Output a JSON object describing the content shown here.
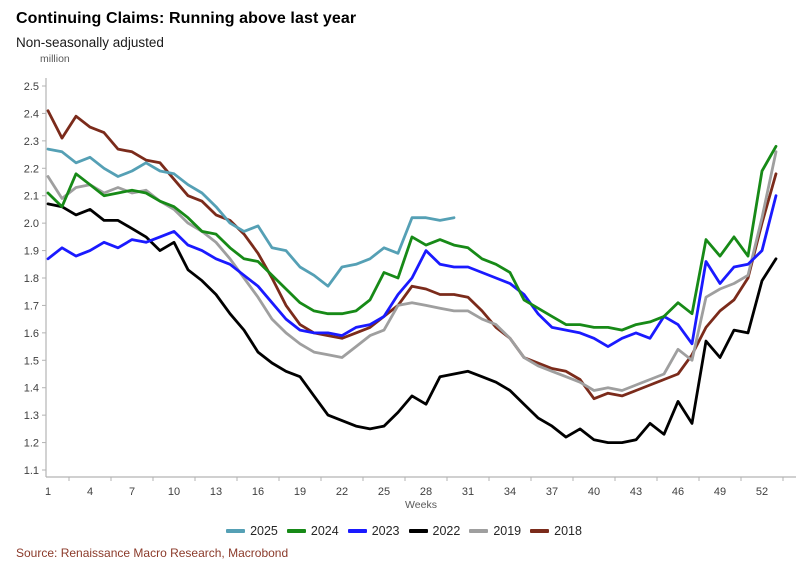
{
  "header": {
    "title": "Continuing Claims: Running above last year",
    "subtitle": "Non-seasonally adjusted"
  },
  "source": {
    "label": "Source: Renaissance Macro Research, Macrobond"
  },
  "chart_data": {
    "type": "line",
    "title": "Continuing Claims: Running above last year",
    "subtitle": "Non-seasonally adjusted",
    "unit_label": "million",
    "xlabel": "Weeks",
    "ylim": [
      1.1,
      2.5
    ],
    "ytick_step": 0.1,
    "x_ticks": [
      1,
      4,
      7,
      10,
      13,
      16,
      19,
      22,
      25,
      28,
      31,
      34,
      37,
      40,
      43,
      46,
      49,
      52
    ],
    "x_start": 1,
    "x_max": 53,
    "grid": false,
    "legend_position": "bottom",
    "axis_color": "#b3b3b3",
    "tick_label_color": "#404040",
    "axis_title_color": "#595959",
    "series": [
      {
        "name": "2025",
        "color": "#55a0b5",
        "values": [
          2.27,
          2.26,
          2.22,
          2.24,
          2.2,
          2.17,
          2.19,
          2.22,
          2.19,
          2.18,
          2.14,
          2.11,
          2.06,
          2.0,
          1.97,
          1.99,
          1.91,
          1.9,
          1.84,
          1.81,
          1.77,
          1.84,
          1.85,
          1.87,
          1.91,
          1.89,
          2.02,
          2.02,
          2.01,
          2.02
        ]
      },
      {
        "name": "2024",
        "color": "#178a17",
        "values": [
          2.11,
          2.06,
          2.18,
          2.14,
          2.1,
          2.11,
          2.12,
          2.11,
          2.08,
          2.06,
          2.02,
          1.97,
          1.96,
          1.91,
          1.87,
          1.86,
          1.81,
          1.76,
          1.71,
          1.68,
          1.67,
          1.67,
          1.68,
          1.72,
          1.82,
          1.8,
          1.95,
          1.92,
          1.94,
          1.92,
          1.91,
          1.87,
          1.85,
          1.82,
          1.72,
          1.69,
          1.66,
          1.63,
          1.63,
          1.62,
          1.62,
          1.61,
          1.63,
          1.64,
          1.66,
          1.71,
          1.67,
          1.94,
          1.88,
          1.95,
          1.88,
          2.19,
          2.28
        ]
      },
      {
        "name": "2023",
        "color": "#1a1aff",
        "values": [
          1.87,
          1.91,
          1.88,
          1.9,
          1.93,
          1.91,
          1.94,
          1.93,
          1.95,
          1.97,
          1.92,
          1.9,
          1.87,
          1.85,
          1.81,
          1.77,
          1.71,
          1.65,
          1.61,
          1.6,
          1.6,
          1.59,
          1.62,
          1.63,
          1.66,
          1.74,
          1.8,
          1.9,
          1.85,
          1.84,
          1.84,
          1.82,
          1.8,
          1.78,
          1.74,
          1.67,
          1.62,
          1.61,
          1.6,
          1.58,
          1.55,
          1.58,
          1.6,
          1.58,
          1.66,
          1.63,
          1.56,
          1.86,
          1.78,
          1.84,
          1.85,
          1.9,
          2.1
        ]
      },
      {
        "name": "2022",
        "color": "#000000",
        "values": [
          2.07,
          2.06,
          2.03,
          2.05,
          2.01,
          2.01,
          1.98,
          1.95,
          1.9,
          1.93,
          1.83,
          1.79,
          1.74,
          1.67,
          1.61,
          1.53,
          1.49,
          1.46,
          1.44,
          1.37,
          1.3,
          1.28,
          1.26,
          1.25,
          1.26,
          1.31,
          1.37,
          1.34,
          1.44,
          1.45,
          1.46,
          1.44,
          1.42,
          1.39,
          1.34,
          1.29,
          1.26,
          1.22,
          1.25,
          1.21,
          1.2,
          1.2,
          1.21,
          1.27,
          1.23,
          1.35,
          1.27,
          1.57,
          1.51,
          1.61,
          1.6,
          1.79,
          1.87
        ]
      },
      {
        "name": "2019",
        "color": "#9f9f9f",
        "values": [
          2.17,
          2.09,
          2.13,
          2.14,
          2.11,
          2.13,
          2.11,
          2.12,
          2.08,
          2.05,
          2.0,
          1.97,
          1.93,
          1.87,
          1.8,
          1.73,
          1.65,
          1.6,
          1.56,
          1.53,
          1.52,
          1.51,
          1.55,
          1.59,
          1.61,
          1.7,
          1.71,
          1.7,
          1.69,
          1.68,
          1.68,
          1.65,
          1.63,
          1.58,
          1.51,
          1.48,
          1.46,
          1.44,
          1.42,
          1.39,
          1.4,
          1.39,
          1.41,
          1.43,
          1.45,
          1.54,
          1.5,
          1.73,
          1.76,
          1.78,
          1.81,
          2.02,
          2.26
        ]
      },
      {
        "name": "2018",
        "color": "#7b2b1b",
        "values": [
          2.41,
          2.31,
          2.39,
          2.35,
          2.33,
          2.27,
          2.26,
          2.23,
          2.22,
          2.16,
          2.1,
          2.08,
          2.03,
          2.01,
          1.96,
          1.89,
          1.8,
          1.7,
          1.63,
          1.6,
          1.59,
          1.58,
          1.6,
          1.62,
          1.66,
          1.7,
          1.77,
          1.76,
          1.74,
          1.74,
          1.73,
          1.68,
          1.62,
          1.58,
          1.51,
          1.49,
          1.47,
          1.46,
          1.43,
          1.36,
          1.38,
          1.37,
          1.39,
          1.41,
          1.43,
          1.45,
          1.52,
          1.62,
          1.68,
          1.72,
          1.8,
          2.0,
          2.18
        ]
      }
    ]
  }
}
